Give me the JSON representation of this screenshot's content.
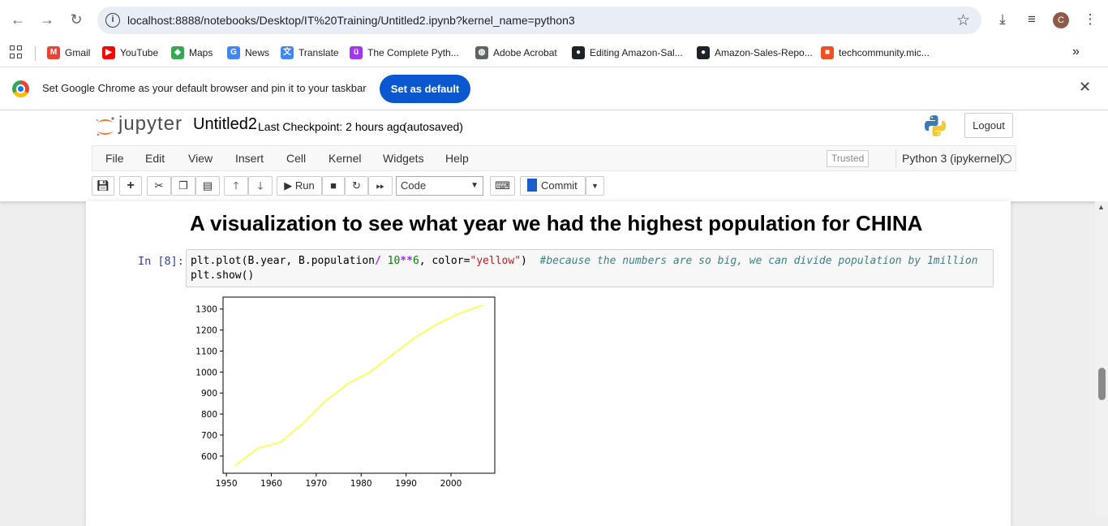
{
  "browser": {
    "url": "localhost:8888/notebooks/Desktop/IT%20Training/Untitled2.ipynb?kernel_name=python3",
    "profile_initial": "C",
    "bookmarks": [
      {
        "label": "Gmail",
        "icon": "gmail-icon",
        "color": "#ea4335",
        "glyph": "M"
      },
      {
        "label": "YouTube",
        "icon": "youtube-icon",
        "color": "#ff0000",
        "glyph": "▶"
      },
      {
        "label": "Maps",
        "icon": "maps-icon",
        "color": "#34a853",
        "glyph": "◆"
      },
      {
        "label": "News",
        "icon": "news-icon",
        "color": "#4285f4",
        "glyph": "G"
      },
      {
        "label": "Translate",
        "icon": "translate-icon",
        "color": "#4285f4",
        "glyph": "文"
      },
      {
        "label": "The Complete Pyth...",
        "icon": "udemy-icon",
        "color": "#a435f0",
        "glyph": "ü"
      },
      {
        "label": "Adobe Acrobat",
        "icon": "globe-icon",
        "color": "#5f6368",
        "glyph": "◍"
      },
      {
        "label": "Editing Amazon-Sal...",
        "icon": "github-icon",
        "color": "#1f2328",
        "glyph": "●"
      },
      {
        "label": "Amazon-Sales-Repo...",
        "icon": "github-icon",
        "color": "#1f2328",
        "glyph": "●"
      },
      {
        "label": "techcommunity.mic...",
        "icon": "microsoft-icon",
        "color": "#f25022",
        "glyph": "■"
      }
    ]
  },
  "banner": {
    "message": "Set Google Chrome as your default browser and pin it to your taskbar",
    "button": "Set as default"
  },
  "jupyter": {
    "logo_text": "jupyter",
    "notebook_name": "Untitled2",
    "checkpoint": "Last Checkpoint: 2 hours ago",
    "autosave": "(autosaved)",
    "logout": "Logout",
    "menu": [
      "File",
      "Edit",
      "View",
      "Insert",
      "Cell",
      "Kernel",
      "Widgets",
      "Help"
    ],
    "trusted": "Trusted",
    "kernel": "Python 3 (ipykernel)",
    "toolbar": {
      "run": "Run",
      "cell_type": "Code",
      "commit": "Commit"
    }
  },
  "notebook": {
    "heading": "A visualization to see what year we had the highest population for CHINA",
    "prompt": "In [8]:",
    "code": {
      "l1_a": "plt.plot(B.year, B.population",
      "l1_op": "/",
      "l1_sp": " ",
      "l1_num": "10",
      "l1_pow": "**",
      "l1_num2": "6",
      "l1_b": ", color=",
      "l1_str": "\"yellow\"",
      "l1_c": ")  ",
      "l1_cmt": "#because the numbers are so big, we can divide population by 1million",
      "l2": "plt.show()"
    }
  },
  "chart_data": {
    "type": "line",
    "title": "",
    "xlabel": "",
    "ylabel": "",
    "line_color": "#ffff33",
    "x": [
      1952,
      1957,
      1962,
      1967,
      1972,
      1977,
      1982,
      1987,
      1992,
      1997,
      2002,
      2007
    ],
    "y": [
      556.3,
      637.4,
      665.8,
      754.6,
      862.0,
      943.5,
      1000.3,
      1084.0,
      1164.97,
      1230.08,
      1280.4,
      1318.68
    ],
    "xlim": [
      1949.25,
      2009.75
    ],
    "ylim": [
      518.2,
      1356.8
    ],
    "xticks": [
      "1950",
      "1960",
      "1970",
      "1980",
      "1990",
      "2000"
    ],
    "xtick_values": [
      1950,
      1960,
      1970,
      1980,
      1990,
      2000
    ],
    "yticks": [
      "600",
      "700",
      "800",
      "900",
      "1000",
      "1100",
      "1200",
      "1300"
    ],
    "ytick_values": [
      600,
      700,
      800,
      900,
      1000,
      1100,
      1200,
      1300
    ]
  }
}
